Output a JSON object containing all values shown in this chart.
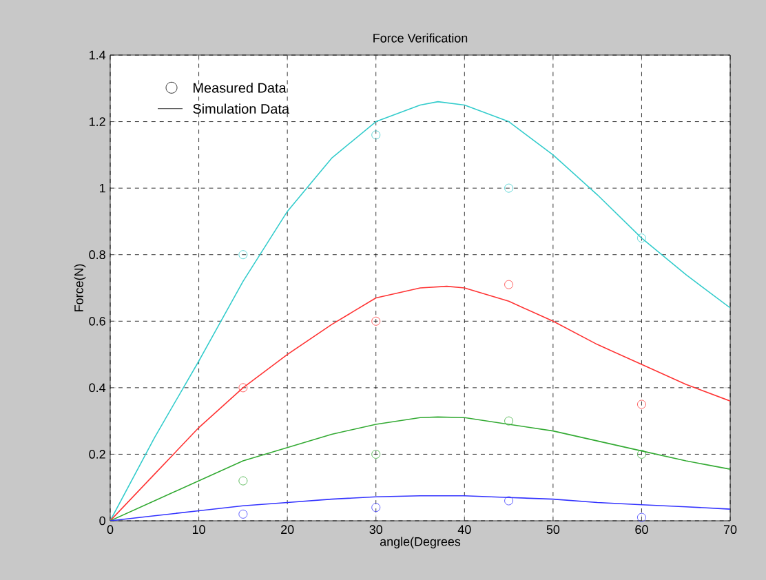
{
  "chart_data": {
    "type": "line",
    "title": "Force Verification",
    "xlabel": "angle(Degrees",
    "ylabel": "Force(N)",
    "annotations": [
      "Measured Data",
      "Simulation Data"
    ],
    "xlim": [
      0,
      70
    ],
    "ylim": [
      0,
      1.4
    ],
    "xticks": [
      0,
      10,
      20,
      30,
      40,
      50,
      60,
      70
    ],
    "yticks": [
      0,
      0.2,
      0.4,
      0.6,
      0.8,
      1,
      1.2,
      1.4
    ],
    "grid": true,
    "line_style": "solid",
    "series": [
      {
        "type": "scatter",
        "marker": "circle",
        "color": "#33cccc",
        "x": [
          15,
          30,
          45,
          60
        ],
        "values": [
          0.8,
          1.16,
          1.0,
          0.85
        ]
      },
      {
        "type": "scatter",
        "marker": "circle",
        "color": "#ff3333",
        "x": [
          15,
          30,
          45,
          60
        ],
        "values": [
          0.4,
          0.6,
          0.71,
          0.35
        ]
      },
      {
        "type": "scatter",
        "marker": "circle",
        "color": "#33aa33",
        "x": [
          15,
          30,
          45,
          60
        ],
        "values": [
          0.12,
          0.2,
          0.3,
          0.2
        ]
      },
      {
        "type": "scatter",
        "marker": "circle",
        "color": "#3333ff",
        "x": [
          15,
          30,
          45,
          60
        ],
        "values": [
          0.02,
          0.04,
          0.06,
          0.01
        ]
      },
      {
        "type": "line",
        "color": "#33cccc",
        "x": [
          0,
          5,
          10,
          15,
          20,
          25,
          30,
          35,
          37,
          40,
          45,
          50,
          55,
          60,
          65,
          70
        ],
        "values": [
          0,
          0.25,
          0.48,
          0.72,
          0.93,
          1.09,
          1.2,
          1.25,
          1.26,
          1.25,
          1.2,
          1.1,
          0.98,
          0.85,
          0.74,
          0.64
        ]
      },
      {
        "type": "line",
        "color": "#ff3333",
        "x": [
          0,
          5,
          10,
          15,
          20,
          25,
          30,
          35,
          38,
          40,
          45,
          50,
          55,
          60,
          65,
          70
        ],
        "values": [
          0,
          0.14,
          0.28,
          0.4,
          0.5,
          0.59,
          0.67,
          0.7,
          0.705,
          0.7,
          0.66,
          0.6,
          0.53,
          0.47,
          0.41,
          0.36
        ]
      },
      {
        "type": "line",
        "color": "#33aa33",
        "x": [
          0,
          5,
          10,
          15,
          20,
          25,
          30,
          35,
          37,
          40,
          45,
          50,
          55,
          60,
          65,
          70
        ],
        "values": [
          0,
          0.06,
          0.12,
          0.18,
          0.22,
          0.26,
          0.29,
          0.31,
          0.312,
          0.31,
          0.29,
          0.27,
          0.24,
          0.21,
          0.18,
          0.155
        ]
      },
      {
        "type": "line",
        "color": "#3333ff",
        "x": [
          0,
          5,
          10,
          15,
          20,
          25,
          30,
          35,
          40,
          45,
          50,
          55,
          60,
          65,
          70
        ],
        "values": [
          0,
          0.015,
          0.03,
          0.045,
          0.055,
          0.065,
          0.072,
          0.075,
          0.075,
          0.07,
          0.065,
          0.055,
          0.048,
          0.042,
          0.035
        ]
      }
    ]
  }
}
